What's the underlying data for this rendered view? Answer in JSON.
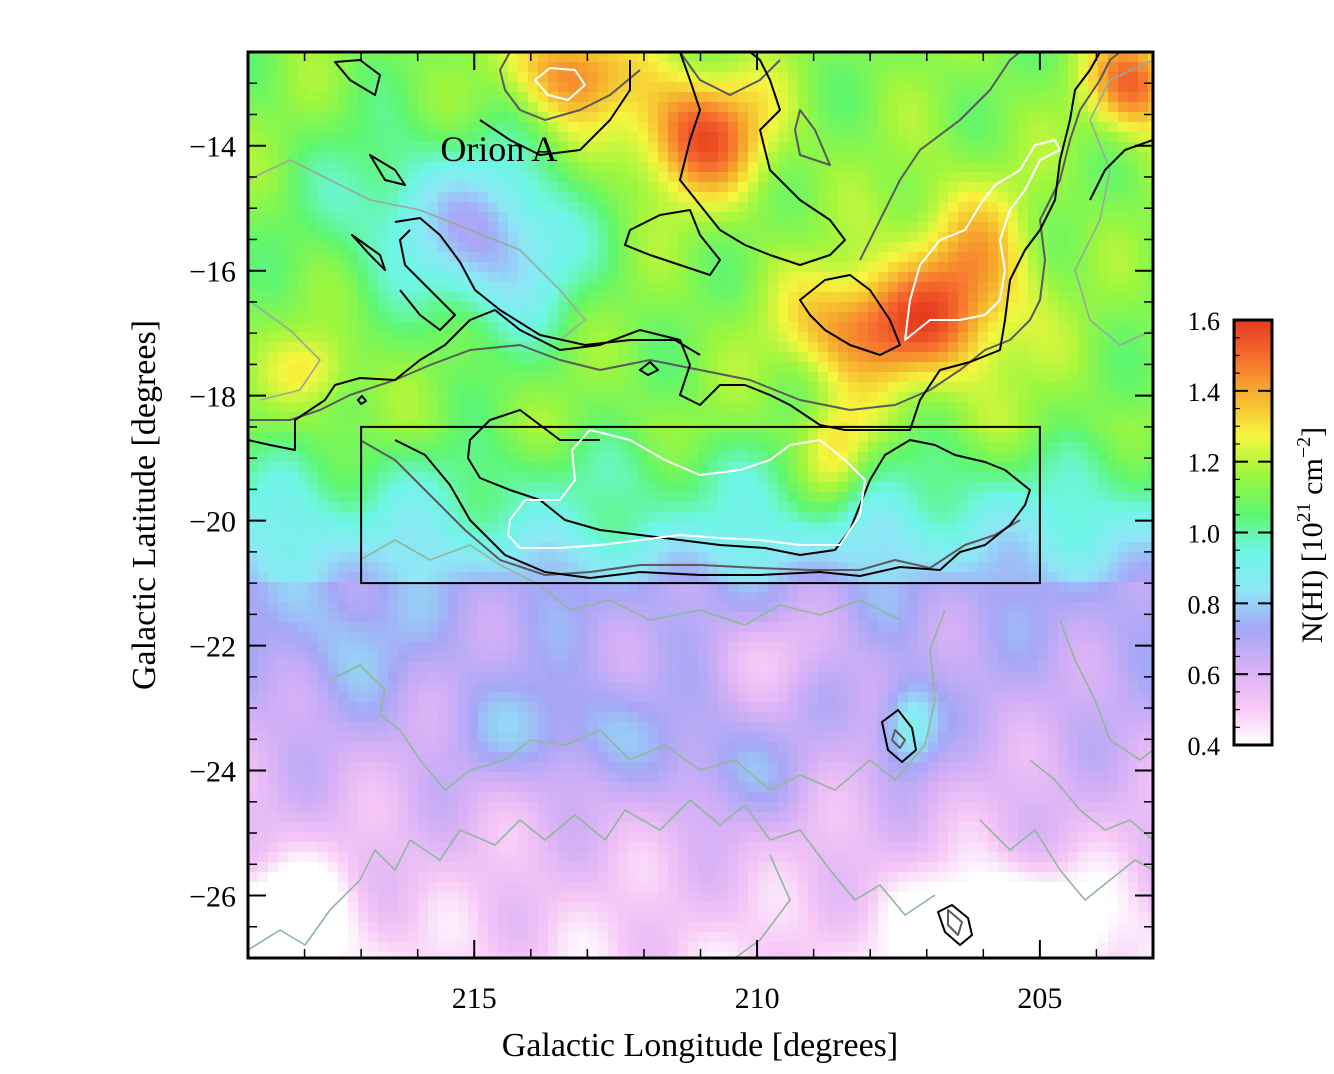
{
  "chart_data": {
    "type": "heatmap",
    "title": "",
    "xlabel": "Galactic Longitude [degrees]",
    "ylabel": "Galactic Latitude [degrees]",
    "x_direction": "decreasing-left-to-right",
    "xlim": [
      219.0,
      203.0
    ],
    "ylim": [
      -27.0,
      -12.5
    ],
    "x_ticks": [
      215,
      210,
      205
    ],
    "x_tick_labels": [
      "215",
      "210",
      "205"
    ],
    "y_ticks": [
      -14,
      -16,
      -18,
      -20,
      -22,
      -24,
      -26
    ],
    "y_tick_labels": [
      "−14",
      "−16",
      "−18",
      "−20",
      "−22",
      "−24",
      "−26"
    ],
    "colorbar": {
      "label_main": "N(HI) [10",
      "label_exp1": "21",
      "label_mid": " cm",
      "label_exp2": "−2",
      "label_end": "]",
      "range": [
        0.4,
        1.6
      ],
      "ticks": [
        0.4,
        0.6,
        0.8,
        1.0,
        1.2,
        1.4,
        1.6
      ],
      "tick_labels": [
        "0.4",
        "0.6",
        "0.8",
        "1.0",
        "1.2",
        "1.4",
        "1.6"
      ],
      "colormap_stops": [
        "#ffffff",
        "#f6c6f6",
        "#d6b0f6",
        "#a6a6f6",
        "#8ee6f6",
        "#6ef6e6",
        "#5ef66e",
        "#9ef63e",
        "#f6f63e",
        "#f6b62e",
        "#f6702e",
        "#e63a1e"
      ]
    },
    "annotations": [
      {
        "text": "Orion A",
        "x": 215.6,
        "y": -14.05
      }
    ],
    "region_box": {
      "x": [
        217.0,
        205.0
      ],
      "y": [
        -21.0,
        -18.5
      ]
    },
    "colors": {
      "contour_high": "#ffffff",
      "contour_mid": "#000000",
      "contour_low": "#5a5a5a",
      "contour_faint": "#8fb89a"
    }
  }
}
